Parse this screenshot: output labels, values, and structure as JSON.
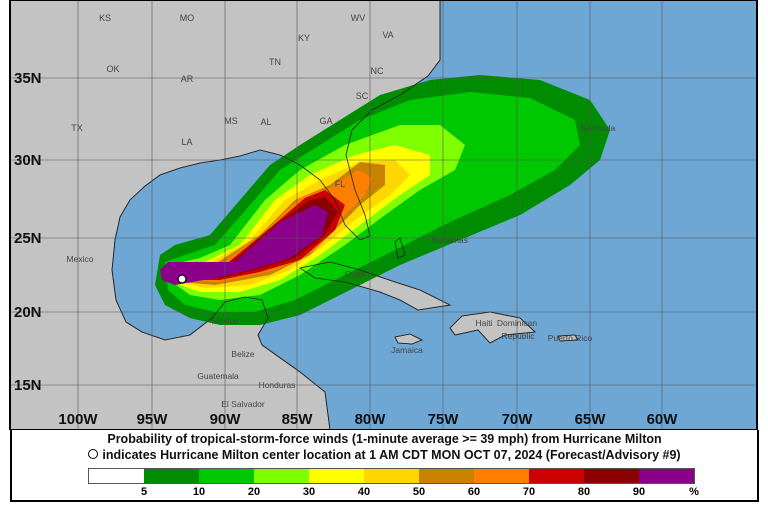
{
  "map": {
    "lat_labels": [
      "35N",
      "30N",
      "25N",
      "20N",
      "15N"
    ],
    "lon_labels": [
      "100W",
      "95W",
      "90W",
      "85W",
      "80W",
      "75W",
      "70W",
      "65W",
      "60W"
    ],
    "place_labels": [
      "KS",
      "MO",
      "KY",
      "WV",
      "VA",
      "OK",
      "AR",
      "TN",
      "NC",
      "SC",
      "MS",
      "AL",
      "GA",
      "TX",
      "LA",
      "FL",
      "Mexico",
      "Mexico",
      "Bermuda",
      "Bahamas",
      "Cuba",
      "Haiti",
      "Dominican",
      "Republic",
      "Puerto Rico",
      "Jamaica",
      "Belize",
      "Guatemala",
      "Honduras",
      "El Salvador"
    ],
    "colors": {
      "ocean": "#6ea6d4",
      "land": "#c3c3c3",
      "center_marker": "#ffffff"
    }
  },
  "legend": {
    "title": "Probability of tropical-storm-force winds (1-minute average >= 39 mph) from Hurricane Milton",
    "subtitle": "indicates Hurricane Milton center location at 1 AM CDT MON OCT 07, 2024 (Forecast/Advisory #9)",
    "scale_colors": [
      "#ffffff",
      "#008c00",
      "#00c800",
      "#80ff00",
      "#ffff00",
      "#ffd700",
      "#c88200",
      "#ff8000",
      "#cc0000",
      "#8b0000",
      "#8b008b"
    ],
    "tick_labels": [
      "5",
      "10",
      "20",
      "30",
      "40",
      "50",
      "60",
      "70",
      "80",
      "90",
      "%"
    ]
  }
}
